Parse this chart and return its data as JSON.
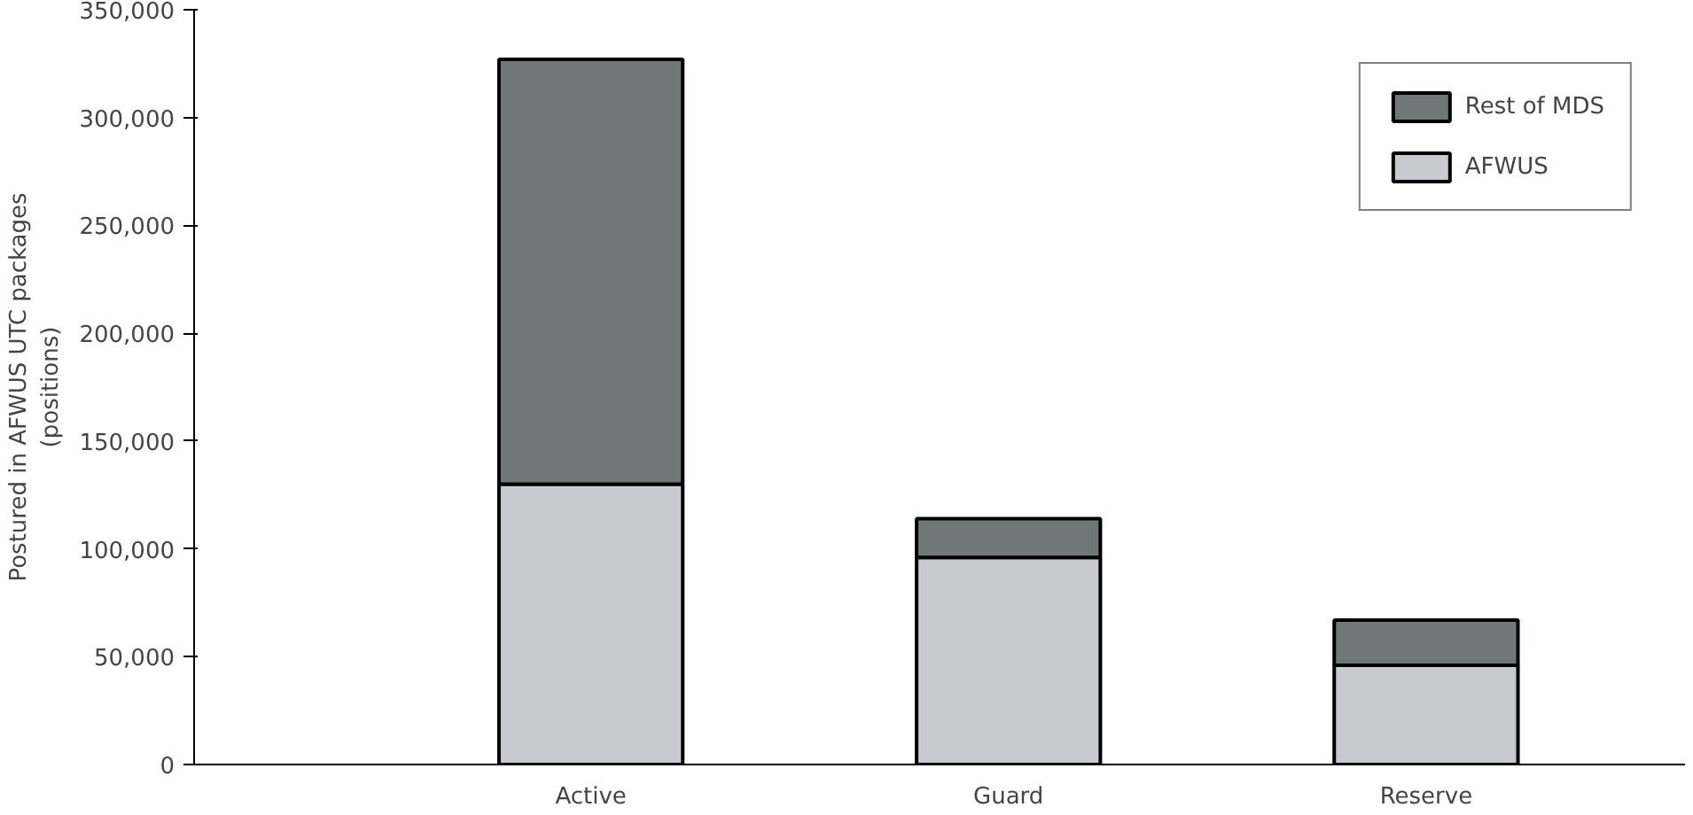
{
  "chart_data": {
    "type": "bar",
    "stacked": true,
    "ylabel": "Postured in AFWUS UTC packages\n(positions)",
    "categories": [
      "Active",
      "Guard",
      "Reserve"
    ],
    "series": [
      {
        "name": "AFWUS",
        "color": "#c8cacf",
        "values": [
          130000,
          96000,
          46000
        ]
      },
      {
        "name": "Rest of MDS",
        "color": "#6f7777",
        "values": [
          197000,
          18000,
          21000
        ]
      }
    ],
    "ylim": [
      0,
      350000
    ],
    "yticks": [
      {
        "value": 0,
        "label": "0"
      },
      {
        "value": 50000,
        "label": "50,000"
      },
      {
        "value": 100000,
        "label": "100,000"
      },
      {
        "value": 150000,
        "label": "150,000"
      },
      {
        "value": 200000,
        "label": "200,000"
      },
      {
        "value": 250000,
        "label": "250,000"
      },
      {
        "value": 300000,
        "label": "300,000"
      },
      {
        "value": 350000,
        "label": "350,000"
      }
    ],
    "grid": false,
    "legend": "top right"
  }
}
